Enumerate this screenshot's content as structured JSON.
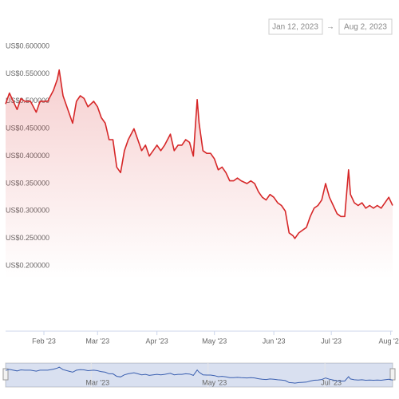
{
  "chart_data": {
    "type": "line",
    "range_start": "Jan 12, 2023",
    "range_arrow": "→",
    "range_end": "Aug 2, 2023",
    "color": "#d62728",
    "x": [
      12,
      14,
      16,
      18,
      20,
      22,
      25,
      28,
      30,
      34,
      37,
      39,
      40,
      42,
      45,
      47,
      49,
      51,
      53,
      55,
      58,
      60,
      62,
      64,
      66,
      68,
      70,
      72,
      74,
      76,
      79,
      81,
      83,
      85,
      87,
      89,
      91,
      93,
      95,
      98,
      100,
      102,
      104,
      106,
      108,
      110,
      112,
      113,
      115,
      117,
      119,
      121,
      123,
      125,
      127,
      129,
      131,
      133,
      135,
      138,
      140,
      142,
      144,
      146,
      148,
      150,
      152,
      154,
      156,
      158,
      160,
      162,
      163,
      165,
      167,
      169,
      171,
      173,
      175,
      177,
      179,
      181,
      183,
      185,
      187,
      189,
      191,
      192,
      194,
      196,
      198,
      200,
      202,
      204,
      206,
      208,
      210,
      212,
      214
    ],
    "values": [
      0.505,
      0.525,
      0.51,
      0.495,
      0.515,
      0.51,
      0.51,
      0.49,
      0.51,
      0.51,
      0.53,
      0.55,
      0.567,
      0.52,
      0.49,
      0.47,
      0.51,
      0.52,
      0.515,
      0.5,
      0.51,
      0.5,
      0.48,
      0.47,
      0.44,
      0.44,
      0.39,
      0.38,
      0.42,
      0.44,
      0.46,
      0.44,
      0.42,
      0.43,
      0.41,
      0.42,
      0.43,
      0.42,
      0.43,
      0.45,
      0.42,
      0.43,
      0.43,
      0.44,
      0.435,
      0.41,
      0.513,
      0.47,
      0.42,
      0.415,
      0.415,
      0.405,
      0.385,
      0.39,
      0.38,
      0.365,
      0.365,
      0.37,
      0.365,
      0.36,
      0.365,
      0.36,
      0.345,
      0.335,
      0.33,
      0.34,
      0.335,
      0.325,
      0.32,
      0.31,
      0.27,
      0.265,
      0.26,
      0.27,
      0.275,
      0.28,
      0.3,
      0.315,
      0.32,
      0.33,
      0.36,
      0.335,
      0.32,
      0.305,
      0.3,
      0.3,
      0.385,
      0.34,
      0.325,
      0.32,
      0.325,
      0.315,
      0.32,
      0.315,
      0.32,
      0.315,
      0.325,
      0.335,
      0.32
    ],
    "xlim": [
      12,
      214
    ],
    "ylim": [
      0.2,
      0.6
    ],
    "yticks": [
      {
        "value": 0.2,
        "label": "US$0.200000"
      },
      {
        "value": 0.25,
        "label": "US$0.250000"
      },
      {
        "value": 0.3,
        "label": "US$0.300000"
      },
      {
        "value": 0.35,
        "label": "US$0.350000"
      },
      {
        "value": 0.4,
        "label": "US$0.400000"
      },
      {
        "value": 0.45,
        "label": "US$0.450000"
      },
      {
        "value": 0.5,
        "label": "US$0.500000"
      },
      {
        "value": 0.55,
        "label": "US$0.550000"
      },
      {
        "value": 0.6,
        "label": "US$0.600000"
      }
    ],
    "xticks": [
      {
        "value": 32,
        "label": "Feb '23"
      },
      {
        "value": 60,
        "label": "Mar '23"
      },
      {
        "value": 91,
        "label": "Apr '23"
      },
      {
        "value": 121,
        "label": "May '23"
      },
      {
        "value": 152,
        "label": "Jun '23"
      },
      {
        "value": 182,
        "label": "Jul '23"
      },
      {
        "value": 213,
        "label": "Aug '23"
      }
    ],
    "navigator_ticks": [
      {
        "value": 60,
        "label": "Mar '23"
      },
      {
        "value": 121,
        "label": "May '23"
      },
      {
        "value": 182,
        "label": "Jul '23"
      }
    ]
  }
}
